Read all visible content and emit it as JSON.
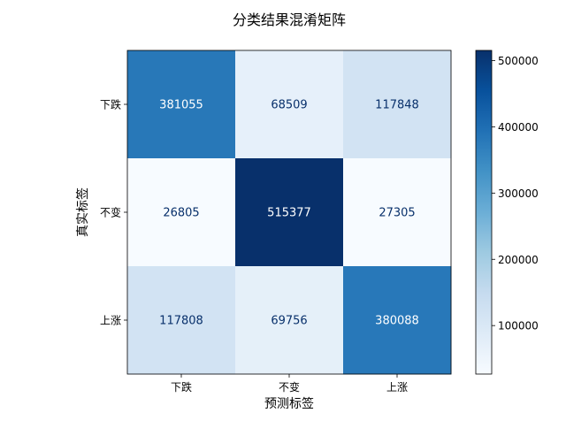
{
  "chart_data": {
    "type": "heatmap",
    "title": "分类结果混淆矩阵",
    "xlabel": "预测标签",
    "ylabel": "真实标签",
    "x_categories": [
      "下跌",
      "不变",
      "上涨"
    ],
    "y_categories": [
      "下跌",
      "不变",
      "上涨"
    ],
    "values": [
      [
        381055,
        68509,
        117848
      ],
      [
        26805,
        515377,
        27305
      ],
      [
        117808,
        69756,
        380088
      ]
    ],
    "colormap": "Blues",
    "color_range": [
      26805,
      515377
    ],
    "colorbar_ticks": [
      100000,
      200000,
      300000,
      400000,
      500000
    ],
    "colorbar_tick_labels": [
      "100000",
      "200000",
      "300000",
      "400000",
      "500000"
    ],
    "grid": false
  }
}
